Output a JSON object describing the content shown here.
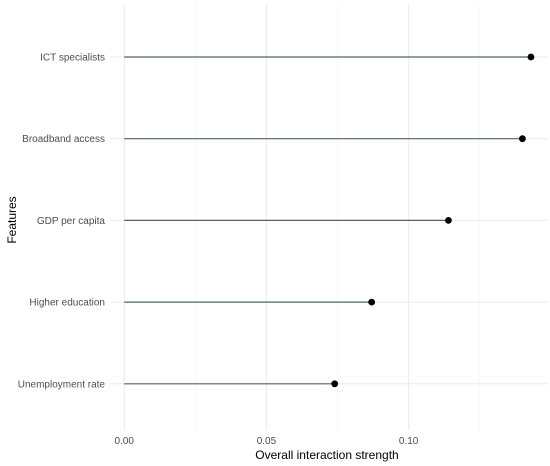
{
  "chart_data": {
    "type": "lollipop",
    "title": "",
    "xlabel": "Overall interaction strength",
    "ylabel": "Features",
    "categories": [
      "ICT specialists",
      "Broadband access",
      "GDP per capita",
      "Higher education",
      "Unemployment rate"
    ],
    "values": [
      0.143,
      0.14,
      0.114,
      0.087,
      0.074
    ],
    "xlim": [
      -0.005,
      0.149
    ],
    "x_ticks": [
      0.0,
      0.05,
      0.1
    ],
    "x_tick_labels": [
      "0.00",
      "0.05",
      "0.10"
    ],
    "grid": true,
    "legend": "none",
    "colors": {
      "segment": "#4f6474",
      "point": "#000000",
      "grid_major": "#ebebeb",
      "grid_minor": "#f4f4f4"
    }
  }
}
